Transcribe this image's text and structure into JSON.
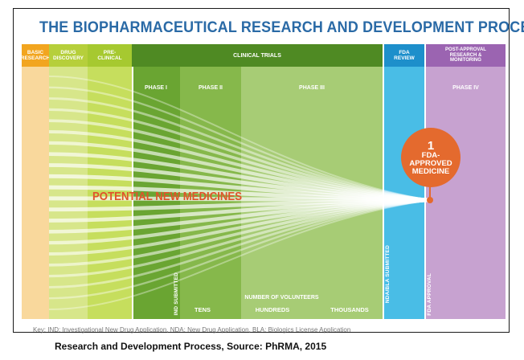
{
  "title": "THE BIOPHARMACEUTICAL RESEARCH AND DEVELOPMENT PROCESS",
  "stages": {
    "basic_research": "BASIC RESEARCH",
    "drug_discovery": "DRUG DISCOVERY",
    "pre_clinical": "PRE-CLINICAL",
    "clinical_trials": "CLINICAL TRIALS",
    "fda_review": "FDA REVIEW",
    "post_approval": "POST-APPROVAL RESEARCH & MONITORING"
  },
  "phases": {
    "phase1": "PHASE I",
    "phase2": "PHASE II",
    "phase3": "PHASE III",
    "phase4": "PHASE IV"
  },
  "milestones": {
    "ind": "IND SUBMITTED",
    "nda": "NDA/BLA SUBMITTED",
    "approval": "FDA APPROVAL"
  },
  "volunteers": {
    "label": "NUMBER OF VOLUNTEERS",
    "tens": "TENS",
    "hundreds": "HUNDREDS",
    "thousands": "THOUSANDS"
  },
  "potential_label": "POTENTIAL NEW MEDICINES",
  "fda_callout": {
    "number": "1",
    "text": "FDA-\nAPPROVED\nMEDICINE"
  },
  "key": "Key: IND: Investigational New Drug Application, NDA: New Drug Application, BLA: Biologics License Application",
  "caption": "Research and Development Process, Source: PhRMA, 2015",
  "colors": {
    "title": "#2a6aa6",
    "basic": "#f9d89c",
    "basic_hdr": "#f2a51f",
    "discovery": "#d7e68a",
    "discovery_hdr": "#b6cf3b",
    "preclinical": "#c6de5d",
    "preclinical_hdr": "#a6c930",
    "phase1": "#6aa532",
    "phase2": "#86b84b",
    "phase3": "#a7cc75",
    "clinical_hdr": "#4f8a23",
    "fda_review": "#49bde6",
    "fda_review_hdr": "#1d8fcb",
    "phase4": "#c7a2d0",
    "phase4_hdr": "#9b64b1",
    "accent": "#e46a2e"
  }
}
